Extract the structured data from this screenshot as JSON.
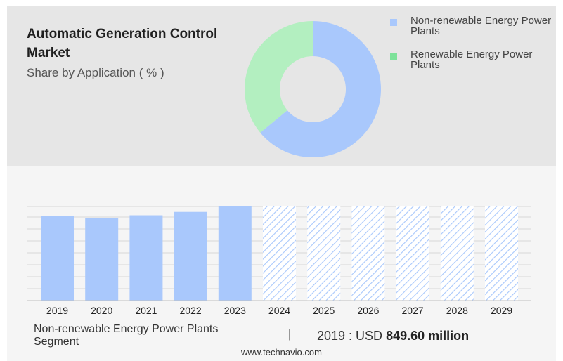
{
  "header": {
    "title": "Automatic Generation Control Market",
    "subtitle": "Share by Application ( % )"
  },
  "donut_chart": {
    "type": "pie",
    "slices": [
      {
        "label": "Non-renewable Energy Power Plants",
        "value": 64,
        "color": "#a9c8fc"
      },
      {
        "label": "Renewable Energy Power Plants",
        "value": 36,
        "color": "#b3efc0"
      }
    ],
    "legend_colors": [
      "#a9c8fc",
      "#7de29a"
    ]
  },
  "chart_data": {
    "type": "bar",
    "categories": [
      "2019",
      "2020",
      "2021",
      "2022",
      "2023",
      "2024",
      "2025",
      "2026",
      "2027",
      "2028",
      "2029"
    ],
    "values": [
      849.6,
      843,
      852,
      862,
      878,
      878,
      878,
      878,
      878,
      878,
      878
    ],
    "forecast_from_index": 5,
    "ylim": [
      600,
      878
    ],
    "grid": true,
    "color": "#a9c8fc"
  },
  "footer": {
    "segment": "Non-renewable Energy Power Plants Segment",
    "divider": "|",
    "value_prefix": "2019 : USD",
    "value_bold": "849.60 million",
    "source": "www.technavio.com"
  }
}
